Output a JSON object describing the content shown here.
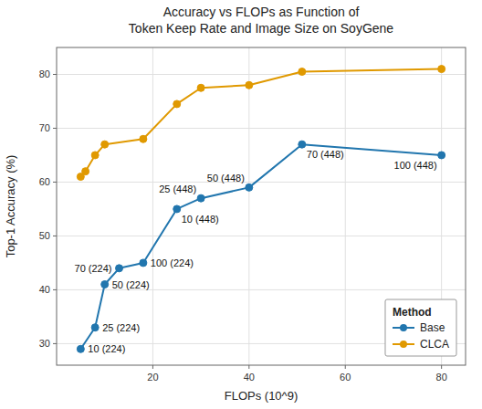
{
  "chart_data": {
    "type": "line",
    "title": "Accuracy vs FLOPs as Function of\nToken Keep Rate and Image Size on SoyGene",
    "xlabel": "FLOPs (10^9)",
    "ylabel": "Top-1 Accuracy (%)",
    "series": [
      {
        "name": "Base",
        "color": "#2176ae",
        "marker": "circle",
        "line_style": "solid",
        "x": [
          5,
          8,
          10,
          13,
          18,
          25,
          30,
          40,
          51,
          80
        ],
        "values": [
          29,
          33,
          41,
          44,
          45,
          55,
          57,
          59,
          67,
          65
        ]
      },
      {
        "name": "CLCA",
        "color": "#e09900",
        "marker": "circle",
        "line_style": "solid",
        "x": [
          5,
          6,
          8,
          10,
          18,
          25,
          30,
          40,
          51,
          80
        ],
        "values": [
          61,
          62,
          65,
          67,
          68,
          74.5,
          77.5,
          78,
          80.5,
          81
        ]
      }
    ],
    "annotations": [
      {
        "text": "10 (224)",
        "x": 5,
        "y": 29
      },
      {
        "text": "25 (224)",
        "x": 8,
        "y": 33
      },
      {
        "text": "50 (224)",
        "x": 10,
        "y": 41
      },
      {
        "text": "70 (224)",
        "x": 13,
        "y": 44
      },
      {
        "text": "100 (224)",
        "x": 18,
        "y": 45
      },
      {
        "text": "10 (448)",
        "x": 25,
        "y": 55
      },
      {
        "text": "25 (448)",
        "x": 30,
        "y": 57
      },
      {
        "text": "50 (448)",
        "x": 40,
        "y": 59
      },
      {
        "text": "70 (448)",
        "x": 51,
        "y": 67
      },
      {
        "text": "100 (448)",
        "x": 80,
        "y": 65
      }
    ],
    "xlim": [
      0,
      85
    ],
    "ylim": [
      26,
      85
    ],
    "xticks": [
      20,
      40,
      60,
      80
    ],
    "yticks": [
      30,
      40,
      50,
      60,
      70,
      80
    ],
    "grid": true,
    "legend": "lower right",
    "legend_title": "Method"
  }
}
